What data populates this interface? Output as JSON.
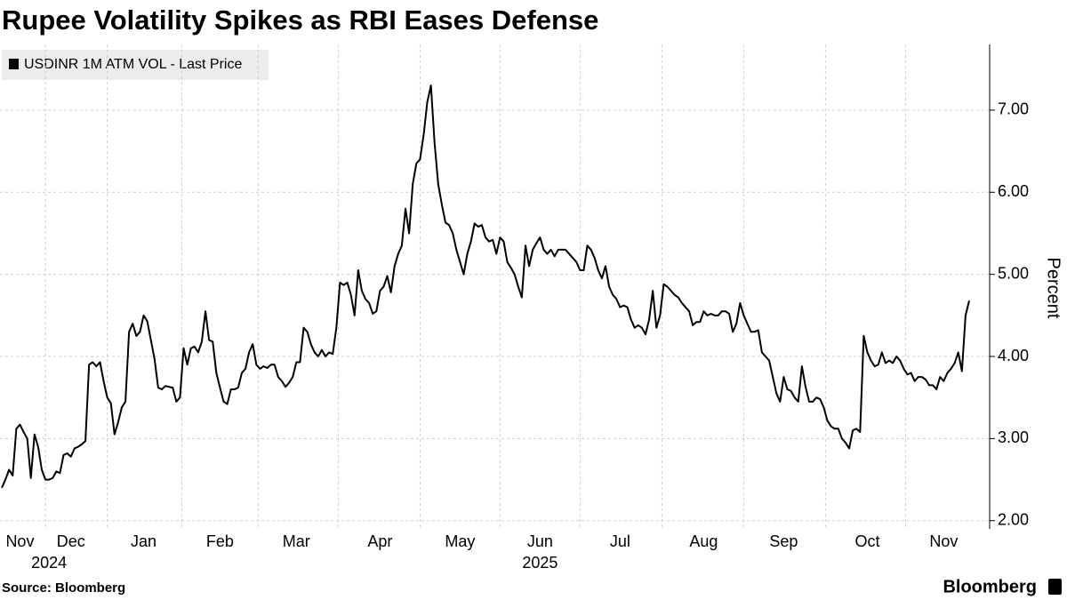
{
  "chart_data": {
    "type": "line",
    "title": "Rupee Volatility Spikes as RBI Eases Defense",
    "y_axis_label": "Percent",
    "source": "Source: Bloomberg",
    "brand": "Bloomberg",
    "ylim": [
      1.9,
      7.8
    ],
    "yticks": [
      {
        "value": 2,
        "label": "2.00"
      },
      {
        "value": 3,
        "label": "3.00"
      },
      {
        "value": 4,
        "label": "4.00"
      },
      {
        "value": 5,
        "label": "5.00"
      },
      {
        "value": 6,
        "label": "6.00"
      },
      {
        "value": 7,
        "label": "7.00"
      }
    ],
    "grid": true,
    "legend": "top-left",
    "categories": [
      null,
      null,
      null,
      null,
      null,
      "Nov",
      null,
      null,
      null,
      null,
      null,
      null,
      null,
      null,
      null,
      null,
      null,
      null,
      null,
      "Dec",
      null,
      null,
      null,
      null,
      null,
      null,
      null,
      null,
      null,
      null,
      null,
      null,
      null,
      null,
      null,
      null,
      null,
      null,
      null,
      "Jan",
      null,
      null,
      null,
      null,
      null,
      null,
      null,
      null,
      null,
      null,
      null,
      null,
      null,
      null,
      null,
      null,
      null,
      null,
      null,
      null,
      "Feb",
      null,
      null,
      null,
      null,
      null,
      null,
      null,
      null,
      null,
      null,
      null,
      null,
      null,
      null,
      null,
      null,
      null,
      null,
      null,
      null,
      "Mar",
      null,
      null,
      null,
      null,
      null,
      null,
      null,
      null,
      null,
      null,
      null,
      null,
      null,
      null,
      null,
      null,
      null,
      null,
      null,
      null,
      null,
      null,
      "Apr",
      null,
      null,
      null,
      null,
      null,
      null,
      null,
      null,
      null,
      null,
      null,
      null,
      null,
      null,
      null,
      null,
      null,
      null,
      null,
      null,
      null,
      "May",
      null,
      null,
      null,
      null,
      null,
      null,
      null,
      null,
      null,
      null,
      null,
      null,
      null,
      null,
      null,
      null,
      null,
      null,
      null,
      null,
      null,
      "Jun",
      null,
      null,
      null,
      null,
      null,
      null,
      null,
      null,
      null,
      null,
      null,
      null,
      null,
      null,
      null,
      null,
      null,
      null,
      null,
      null,
      null,
      "Jul",
      null,
      null,
      null,
      null,
      null,
      null,
      null,
      null,
      null,
      null,
      null,
      null,
      null,
      null,
      null,
      null,
      null,
      null,
      null,
      null,
      null,
      null,
      "Aug",
      null,
      null,
      null,
      null,
      null,
      null,
      null,
      null,
      null,
      null,
      null,
      null,
      null,
      null,
      null,
      null,
      null,
      null,
      null,
      null,
      null,
      "Sep",
      null,
      null,
      null,
      null,
      null,
      null,
      null,
      null,
      null,
      null,
      null,
      null,
      null,
      null,
      null,
      null,
      null,
      null,
      null,
      null,
      null,
      null,
      "Oct",
      null,
      null,
      null,
      null,
      null,
      null,
      null,
      null,
      null,
      null,
      null,
      null,
      null,
      null,
      null,
      null,
      null,
      null,
      null,
      null,
      "Nov",
      null,
      null,
      null,
      null,
      null,
      null,
      null
    ],
    "year_labels": [
      null,
      null,
      null,
      null,
      null,
      null,
      null,
      null,
      null,
      null,
      null,
      null,
      null,
      "2024",
      null,
      null,
      null,
      null,
      null,
      null,
      null,
      null,
      null,
      null,
      null,
      null,
      null,
      null,
      null,
      null,
      null,
      null,
      null,
      null,
      null,
      null,
      null,
      null,
      null,
      null,
      null,
      null,
      null,
      null,
      null,
      null,
      null,
      null,
      null,
      null,
      null,
      null,
      null,
      null,
      null,
      null,
      null,
      null,
      null,
      null,
      null,
      null,
      null,
      null,
      null,
      null,
      null,
      null,
      null,
      null,
      null,
      null,
      null,
      null,
      null,
      null,
      null,
      null,
      null,
      null,
      null,
      null,
      null,
      null,
      null,
      null,
      null,
      null,
      null,
      null,
      null,
      null,
      null,
      null,
      null,
      null,
      null,
      null,
      null,
      null,
      null,
      null,
      null,
      null,
      null,
      null,
      null,
      null,
      null,
      null,
      null,
      null,
      null,
      null,
      null,
      null,
      null,
      null,
      null,
      null,
      null,
      null,
      null,
      null,
      null,
      null,
      null,
      null,
      null,
      null,
      null,
      null,
      null,
      null,
      null,
      null,
      null,
      null,
      null,
      null,
      null,
      null,
      null,
      null,
      null,
      null,
      null,
      null,
      "2025",
      null,
      null,
      null,
      null,
      null,
      null,
      null,
      null,
      null,
      null,
      null,
      null,
      null,
      null,
      null,
      null,
      null,
      null,
      null,
      null,
      null,
      null,
      null,
      null,
      null,
      null,
      null,
      null,
      null,
      null,
      null,
      null,
      null,
      null,
      null,
      null,
      null,
      null,
      null,
      null,
      null,
      null,
      null,
      null,
      null,
      null,
      null,
      null,
      null,
      null,
      null,
      null,
      null,
      null,
      null,
      null,
      null,
      null,
      null,
      null,
      null,
      null,
      null,
      null,
      null,
      null,
      null,
      null,
      null,
      null,
      null,
      null,
      null,
      null,
      null,
      null,
      null,
      null,
      null,
      null,
      null,
      null,
      null,
      null,
      null,
      null,
      null,
      null,
      null,
      null,
      null,
      null,
      null,
      null,
      null,
      null,
      null,
      null,
      null,
      null,
      null,
      null,
      null,
      null,
      null,
      null,
      null,
      null,
      null,
      null,
      null,
      null,
      null,
      null,
      null,
      null,
      null,
      null
    ],
    "series": [
      {
        "name": "USDINR 1M ATM VOL - Last Price",
        "color": "#000000",
        "values": [
          2.4,
          2.5,
          2.62,
          2.55,
          3.12,
          3.17,
          3.08,
          3.0,
          2.52,
          3.05,
          2.9,
          2.62,
          2.5,
          2.5,
          2.52,
          2.6,
          2.58,
          2.8,
          2.82,
          2.78,
          2.88,
          2.9,
          2.93,
          2.97,
          3.9,
          3.93,
          3.88,
          3.93,
          3.7,
          3.5,
          3.43,
          3.05,
          3.2,
          3.38,
          3.45,
          4.3,
          4.4,
          4.25,
          4.3,
          4.5,
          4.43,
          4.2,
          3.97,
          3.62,
          3.6,
          3.64,
          3.63,
          3.62,
          3.45,
          3.5,
          4.1,
          3.9,
          4.1,
          4.12,
          4.05,
          4.18,
          4.55,
          4.2,
          4.18,
          3.8,
          3.62,
          3.45,
          3.42,
          3.6,
          3.6,
          3.62,
          3.8,
          3.85,
          4.05,
          4.15,
          3.9,
          3.85,
          3.88,
          3.86,
          3.9,
          3.9,
          3.75,
          3.7,
          3.63,
          3.68,
          3.75,
          3.93,
          3.93,
          4.35,
          4.3,
          4.15,
          4.05,
          4.0,
          4.08,
          4.0,
          4.05,
          4.03,
          4.35,
          4.9,
          4.87,
          4.9,
          4.75,
          4.5,
          5.05,
          4.8,
          4.7,
          4.65,
          4.52,
          4.55,
          4.8,
          4.85,
          4.98,
          4.78,
          5.1,
          5.25,
          5.35,
          5.8,
          5.5,
          6.1,
          6.35,
          6.4,
          6.7,
          7.1,
          7.3,
          6.6,
          6.1,
          5.85,
          5.63,
          5.6,
          5.5,
          5.3,
          5.15,
          5.0,
          5.25,
          5.4,
          5.62,
          5.58,
          5.6,
          5.45,
          5.4,
          5.42,
          5.25,
          5.45,
          5.4,
          5.15,
          5.08,
          5.0,
          4.85,
          4.72,
          5.35,
          5.1,
          5.3,
          5.38,
          5.45,
          5.3,
          5.25,
          5.3,
          5.22,
          5.3,
          5.3,
          5.3,
          5.25,
          5.2,
          5.15,
          5.05,
          5.05,
          5.35,
          5.3,
          5.2,
          5.05,
          4.95,
          5.1,
          4.85,
          4.75,
          4.7,
          4.6,
          4.62,
          4.6,
          4.45,
          4.35,
          4.38,
          4.35,
          4.27,
          4.45,
          4.8,
          4.35,
          4.5,
          4.88,
          4.85,
          4.8,
          4.75,
          4.72,
          4.65,
          4.6,
          4.55,
          4.38,
          4.42,
          4.42,
          4.55,
          4.5,
          4.52,
          4.5,
          4.5,
          4.55,
          4.55,
          4.52,
          4.3,
          4.4,
          4.65,
          4.5,
          4.4,
          4.3,
          4.3,
          4.32,
          4.05,
          4.0,
          3.95,
          3.75,
          3.55,
          3.45,
          3.75,
          3.6,
          3.58,
          3.5,
          3.45,
          3.88,
          3.63,
          3.45,
          3.45,
          3.5,
          3.48,
          3.38,
          3.22,
          3.15,
          3.12,
          3.12,
          3.0,
          2.95,
          2.88,
          3.1,
          3.12,
          3.08,
          4.25,
          4.05,
          3.95,
          3.88,
          3.9,
          4.05,
          3.92,
          3.95,
          3.92,
          4.0,
          3.95,
          3.85,
          3.78,
          3.8,
          3.7,
          3.75,
          3.75,
          3.72,
          3.65,
          3.65,
          3.6,
          3.75,
          3.7,
          3.8,
          3.85,
          3.92,
          4.05,
          3.82,
          4.5,
          4.68
        ]
      }
    ]
  }
}
